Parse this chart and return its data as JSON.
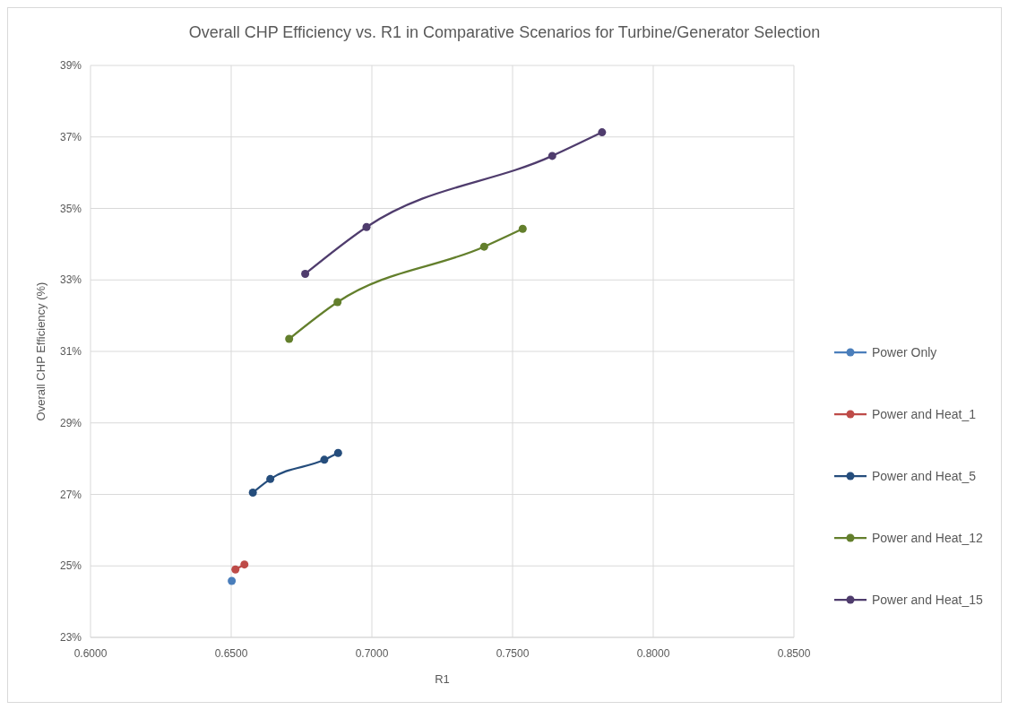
{
  "chart_data": {
    "type": "line",
    "title": "Overall CHP Efficiency vs. R1 in Comparative Scenarios for Turbine/Generator Selection",
    "xlabel": "R1",
    "ylabel": "Overall CHP Efficiency (%)",
    "xlim": [
      0.6,
      0.85
    ],
    "xticks": [
      {
        "value": 0.6,
        "label": "0.6000"
      },
      {
        "value": 0.65,
        "label": "0.6500"
      },
      {
        "value": 0.7,
        "label": "0.7000"
      },
      {
        "value": 0.75,
        "label": "0.7500"
      },
      {
        "value": 0.8,
        "label": "0.8000"
      },
      {
        "value": 0.85,
        "label": "0.8500"
      }
    ],
    "ylim": [
      23,
      39
    ],
    "yticks": [
      {
        "value": 23,
        "label": "23%"
      },
      {
        "value": 25,
        "label": "25%"
      },
      {
        "value": 27,
        "label": "27%"
      },
      {
        "value": 29,
        "label": "29%"
      },
      {
        "value": 31,
        "label": "31%"
      },
      {
        "value": 33,
        "label": "33%"
      },
      {
        "value": 35,
        "label": "35%"
      },
      {
        "value": 37,
        "label": "37%"
      },
      {
        "value": 39,
        "label": "39%"
      }
    ],
    "grid": true,
    "legend": "right",
    "marker": "circle",
    "line_style": "solid",
    "series": [
      {
        "name": "Power Only",
        "color": "#4a7ebb",
        "x": [
          0.6502
        ],
        "values": [
          24.58
        ]
      },
      {
        "name": "Power and Heat_1",
        "color": "#be4b48",
        "x": [
          0.6515,
          0.6547
        ],
        "values": [
          24.9,
          25.04
        ]
      },
      {
        "name": "Power and Heat_5",
        "color": "#254d7c",
        "x": [
          0.6577,
          0.6639,
          0.6831,
          0.688
        ],
        "values": [
          27.05,
          27.43,
          27.97,
          28.16
        ]
      },
      {
        "name": "Power and Heat_12",
        "color": "#637f2c",
        "x": [
          0.6706,
          0.6878,
          0.7399,
          0.7536
        ],
        "values": [
          31.35,
          32.38,
          33.93,
          34.43
        ]
      },
      {
        "name": "Power and Heat_15",
        "color": "#4f3c6d",
        "x": [
          0.6763,
          0.6981,
          0.7641,
          0.7818
        ],
        "values": [
          33.17,
          34.48,
          36.47,
          37.13
        ]
      }
    ]
  }
}
